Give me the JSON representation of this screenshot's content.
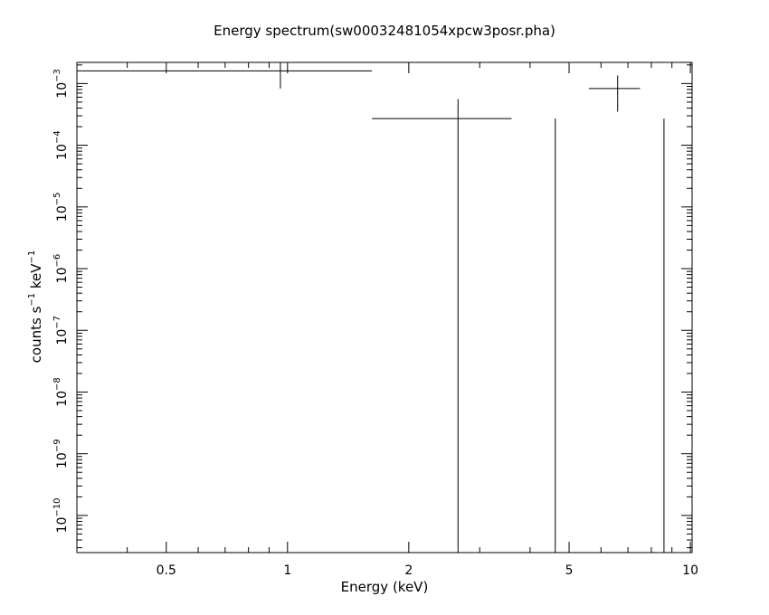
{
  "chart_data": {
    "type": "scatter",
    "title": "Energy spectrum(sw00032481054xpcw3posr.pha)",
    "xlabel": "Energy (keV)",
    "ylabel": {
      "base": "counts s",
      "sup1": "−1",
      "mid": " keV",
      "sup2": "−1"
    },
    "xscale": "log",
    "yscale": "log",
    "xlim": [
      0.3,
      10.1
    ],
    "ylim": [
      2.5e-11,
      0.0022
    ],
    "grid": false,
    "x_ticks": [
      {
        "value": 0.5,
        "label": "0.5"
      },
      {
        "value": 1,
        "label": "1"
      },
      {
        "value": 2,
        "label": "2"
      },
      {
        "value": 5,
        "label": "5"
      },
      {
        "value": 10,
        "label": "10"
      }
    ],
    "y_ticks": [
      {
        "value": 0.001,
        "base": "10",
        "exp": "−3"
      },
      {
        "value": 0.0001,
        "base": "10",
        "exp": "−4"
      },
      {
        "value": 1e-05,
        "base": "10",
        "exp": "−5"
      },
      {
        "value": 1e-06,
        "base": "10",
        "exp": "−6"
      },
      {
        "value": 1e-07,
        "base": "10",
        "exp": "−7"
      },
      {
        "value": 1e-08,
        "base": "10",
        "exp": "−8"
      },
      {
        "value": 1e-09,
        "base": "10",
        "exp": "−9"
      },
      {
        "value": 1e-10,
        "base": "10",
        "exp": "−10"
      }
    ],
    "points": [
      {
        "x": 0.96,
        "xlo": 0.3,
        "xhi": 1.62,
        "y": 0.0016,
        "ylo": 0.00083,
        "yhi": 0.0022
      },
      {
        "x": 2.65,
        "xlo": 1.62,
        "xhi": 3.6,
        "y": 0.00027,
        "ylo": 2.5e-11,
        "yhi": 0.00056
      },
      {
        "x": 4.62,
        "xlo": 4.62,
        "xhi": 4.62,
        "y": 0.00027,
        "ylo": 2.5e-11,
        "yhi": 0.00027
      },
      {
        "x": 6.6,
        "xlo": 5.6,
        "xhi": 7.5,
        "y": 0.00083,
        "ylo": 0.00035,
        "yhi": 0.00135
      },
      {
        "x": 8.6,
        "xlo": 8.6,
        "xhi": 8.6,
        "y": 0.00027,
        "ylo": 2.5e-11,
        "yhi": 0.00027
      }
    ]
  }
}
